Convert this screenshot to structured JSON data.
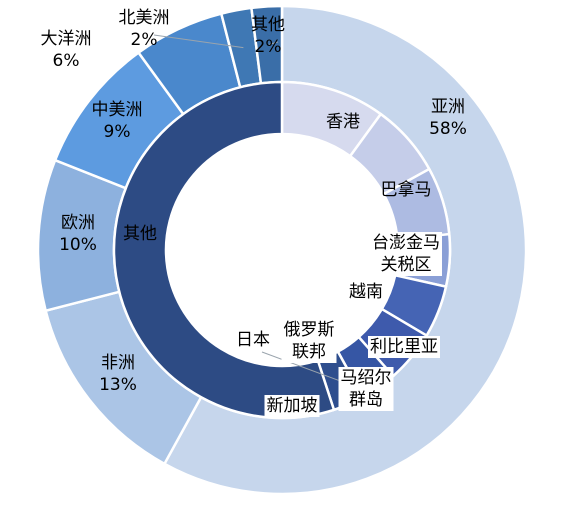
{
  "chart_data": {
    "type": "pie",
    "title": "",
    "outer_ring": [
      {
        "name": "亚洲",
        "value": 58,
        "label": "58%",
        "color": "#c6d6ec"
      },
      {
        "name": "非洲",
        "value": 13,
        "label": "13%",
        "color": "#abc5e6"
      },
      {
        "name": "欧洲",
        "value": 10,
        "label": "10%",
        "color": "#8db1de"
      },
      {
        "name": "中美洲",
        "value": 9,
        "label": "9%",
        "color": "#5d9be0"
      },
      {
        "name": "大洋洲",
        "value": 6,
        "label": "6%",
        "color": "#4a88cc"
      },
      {
        "name": "北美洲",
        "value": 2,
        "label": "2%",
        "color": "#3f78b4"
      },
      {
        "name": "其他",
        "value": 2,
        "label": "2%",
        "color": "#3a6ea8"
      }
    ],
    "inner_ring": [
      {
        "name": "香港",
        "value": 10,
        "color": "#d6daee"
      },
      {
        "name": "巴拿马",
        "value": 7,
        "color": "#c5cde9"
      },
      {
        "name": "台澎金马关税区",
        "value": 6.5,
        "color": "#adbbe2"
      },
      {
        "name": "越南",
        "value": 5,
        "color": "#8a9fd6"
      },
      {
        "name": "利比里亚",
        "value": 5,
        "color": "#4564b4"
      },
      {
        "name": "马绍尔群岛",
        "value": 5,
        "color": "#3e5aac"
      },
      {
        "name": "新加坡",
        "value": 3.5,
        "color": "#3656a4"
      },
      {
        "name": "俄罗斯联邦",
        "value": 0.001,
        "color": "#345494"
      },
      {
        "name": "日本",
        "value": 3,
        "color": "#2e4e8e"
      },
      {
        "name": "其他",
        "value": 55,
        "color": "#2d4b84"
      }
    ]
  }
}
